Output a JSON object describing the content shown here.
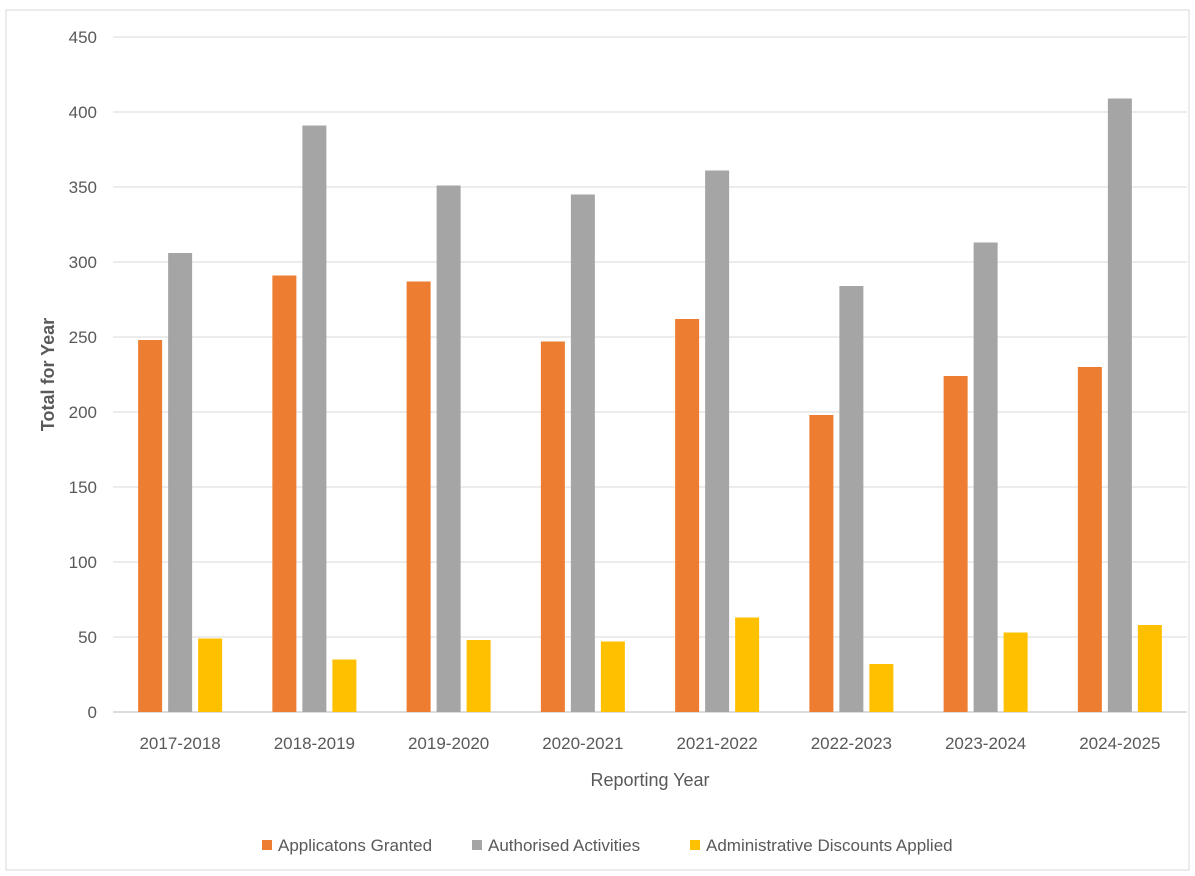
{
  "chart_data": {
    "type": "bar",
    "title": "",
    "xlabel": "Reporting Year",
    "ylabel": "Total for Year",
    "ylim": [
      0,
      450
    ],
    "yticks": [
      0,
      50,
      100,
      150,
      200,
      250,
      300,
      350,
      400,
      450
    ],
    "grid": true,
    "legend_position": "bottom",
    "categories": [
      "2017-2018",
      "2018-2019",
      "2019-2020",
      "2020-2021",
      "2021-2022",
      "2022-2023",
      "2023-2024",
      "2024-2025"
    ],
    "series": [
      {
        "name": "Applicatons Granted",
        "color": "#ED7D31",
        "values": [
          248,
          291,
          287,
          247,
          262,
          198,
          224,
          230
        ]
      },
      {
        "name": "Authorised Activities",
        "color": "#A5A5A5",
        "values": [
          306,
          391,
          351,
          345,
          361,
          284,
          313,
          409
        ]
      },
      {
        "name": "Administrative Discounts Applied",
        "color": "#FFC000",
        "values": [
          49,
          35,
          48,
          47,
          63,
          32,
          53,
          58
        ]
      }
    ]
  }
}
